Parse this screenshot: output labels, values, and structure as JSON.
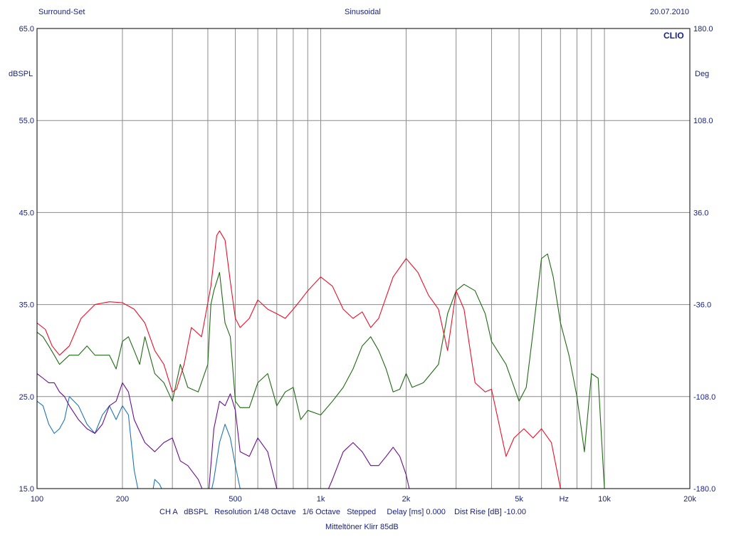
{
  "header": {
    "left": "Surround-Set",
    "center": "Sinusoidal",
    "right": "20.07.2010"
  },
  "brand": "CLIO",
  "footer": {
    "line1": "CH A   dBSPL   Resolution 1/48 Octave   1/6 Octave   Stepped     Delay [ms] 0.000    Dist Rise [dB] -10.00",
    "line2": "Mitteltöner Klirr 85dB"
  },
  "colors": {
    "text": "#1a237e",
    "grid": "#8c8c8c",
    "frame": "#000000",
    "red": "#e8102a",
    "green": "#1e6b12",
    "purple": "#6a0d8c",
    "blue": "#1f74b8"
  },
  "chart_data": {
    "type": "line",
    "x_scale": "log",
    "xlim": [
      100,
      20000
    ],
    "ylim": [
      15,
      65
    ],
    "y2lim": [
      -180,
      180
    ],
    "ylabel": "dBSPL",
    "y2label": "Deg",
    "xunit": "Hz",
    "x_ticks": [
      {
        "v": 100,
        "label": "100"
      },
      {
        "v": 200,
        "label": "200"
      },
      {
        "v": 500,
        "label": "500"
      },
      {
        "v": 1000,
        "label": "1k"
      },
      {
        "v": 2000,
        "label": "2k"
      },
      {
        "v": 5000,
        "label": "5k"
      },
      {
        "v": 10000,
        "label": "10k"
      },
      {
        "v": 20000,
        "label": "20k"
      }
    ],
    "y_ticks": [
      "65.0",
      "55.0",
      "45.0",
      "35.0",
      "25.0",
      "15.0"
    ],
    "y2_ticks": [
      "180.0",
      "108.0",
      "36.0",
      "-36.0",
      "-108.0",
      "-180.0"
    ],
    "series": [
      {
        "key": "red",
        "x": [
          100,
          107,
          113,
          120,
          130,
          143,
          160,
          180,
          200,
          220,
          240,
          260,
          280,
          300,
          310,
          330,
          350,
          380,
          410,
          430,
          440,
          460,
          480,
          500,
          520,
          560,
          600,
          650,
          700,
          750,
          800,
          850,
          900,
          1000,
          1100,
          1200,
          1300,
          1400,
          1500,
          1600,
          1800,
          2000,
          2200,
          2400,
          2600,
          2800,
          3000,
          3200,
          3500,
          3800,
          4000,
          4500,
          4800,
          5200,
          5600,
          6000,
          6500,
          7000
        ],
        "y": [
          33,
          32.3,
          30.5,
          29.5,
          30.5,
          33.5,
          35,
          35.3,
          35.2,
          34.5,
          33,
          30,
          28.5,
          25.5,
          25.8,
          28.5,
          32.5,
          31.5,
          37,
          42.5,
          43,
          42,
          37.5,
          33.5,
          32.5,
          33.5,
          35.5,
          34.5,
          34,
          33.5,
          34.5,
          35.5,
          36.5,
          38,
          37,
          34.5,
          33.5,
          34.2,
          32.5,
          33.5,
          38,
          40,
          38.5,
          36,
          34.5,
          30,
          36.5,
          34.5,
          26.5,
          25.5,
          25.8,
          18.5,
          20.5,
          21.5,
          20.5,
          21.5,
          20,
          15
        ]
      },
      {
        "key": "green",
        "x": [
          100,
          105,
          110,
          115,
          120,
          130,
          140,
          150,
          160,
          180,
          190,
          200,
          210,
          220,
          230,
          240,
          260,
          280,
          300,
          320,
          340,
          370,
          400,
          410,
          420,
          440,
          460,
          480,
          500,
          520,
          560,
          600,
          650,
          700,
          750,
          800,
          850,
          900,
          1000,
          1100,
          1200,
          1300,
          1400,
          1500,
          1600,
          1700,
          1800,
          1900,
          2000,
          2100,
          2300,
          2600,
          2800,
          3000,
          3200,
          3500,
          3800,
          4000,
          4500,
          5000,
          5300,
          5600,
          6000,
          6300,
          6600,
          7000,
          7500,
          8000,
          8500,
          9000,
          9500,
          10000
        ],
        "y": [
          32,
          31.5,
          30.5,
          29.5,
          28.5,
          29.5,
          29.5,
          30.5,
          29.5,
          29.5,
          28,
          31,
          31.5,
          30,
          28.5,
          31.5,
          27.5,
          26.5,
          24.5,
          28.5,
          26,
          25.5,
          28.5,
          35,
          36.5,
          38.5,
          33,
          31.5,
          24.5,
          23.8,
          23.8,
          26.5,
          27.5,
          24,
          25.5,
          26,
          22.5,
          23.5,
          23,
          24.5,
          26,
          28,
          30.5,
          31.5,
          30,
          28,
          25.5,
          25.8,
          27.5,
          26,
          26.5,
          28.5,
          34,
          36.5,
          37.2,
          36.5,
          34,
          31,
          28.5,
          24.5,
          26,
          32,
          40,
          40.5,
          38,
          33,
          29.5,
          25,
          19,
          27.5,
          27,
          15
        ]
      },
      {
        "key": "purple",
        "x": [
          100,
          105,
          110,
          115,
          120,
          125,
          130,
          140,
          150,
          160,
          170,
          180,
          190,
          200,
          210,
          220,
          240,
          260,
          280,
          300,
          320,
          340,
          370,
          400,
          420,
          440,
          460,
          480,
          500,
          520,
          560,
          600,
          650,
          700,
          750,
          800,
          900,
          1000,
          1100,
          1200,
          1300,
          1400,
          1500,
          1600,
          1700,
          1800,
          1900,
          2000,
          2050
        ],
        "y": [
          27.5,
          27,
          26.5,
          26.5,
          25.5,
          25,
          24,
          22.5,
          21.5,
          21,
          22,
          24,
          24.5,
          26.5,
          25.5,
          22.5,
          20,
          19,
          20,
          20.5,
          18,
          17.5,
          16,
          13.5,
          21.5,
          24.5,
          24,
          25.3,
          23.5,
          19,
          18.5,
          20.5,
          19,
          15,
          13,
          13,
          13,
          13,
          16,
          19,
          20,
          19,
          17.5,
          17.5,
          18.5,
          19.5,
          18.5,
          16.5,
          15
        ]
      },
      {
        "key": "blue",
        "x": [
          100,
          105,
          110,
          115,
          120,
          125,
          130,
          140,
          150,
          160,
          170,
          180,
          190,
          200,
          210,
          220,
          230,
          240,
          250,
          260,
          270,
          280,
          290,
          300,
          310,
          320,
          340,
          360,
          380,
          400,
          420,
          440,
          460,
          480,
          500,
          520,
          540
        ],
        "y": [
          24.5,
          24,
          22,
          21,
          21.5,
          22.5,
          25,
          24,
          22,
          21,
          23,
          24,
          22.5,
          24,
          23,
          17,
          14,
          13.5,
          13,
          16,
          15.5,
          14.5,
          13.5,
          12.5,
          12,
          12,
          12,
          12,
          12,
          13,
          16,
          20,
          22,
          20.5,
          17.5,
          15,
          13
        ]
      }
    ]
  }
}
